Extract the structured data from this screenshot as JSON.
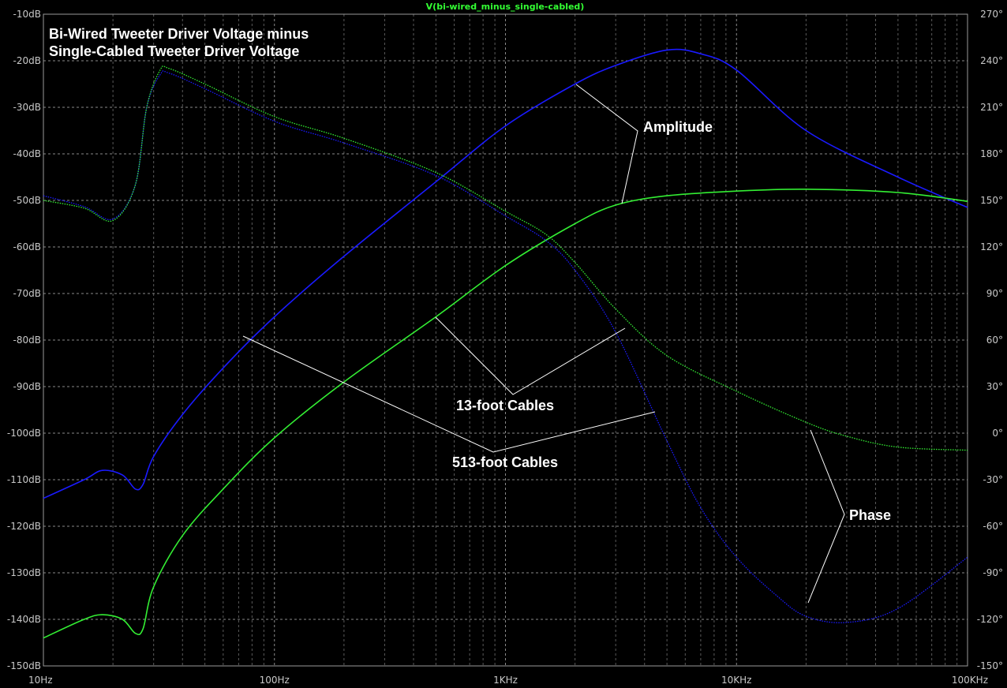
{
  "chart_data": {
    "type": "line",
    "header": "V(bi-wired_minus_single-cabled)",
    "title_lines": [
      "Bi-Wired Tweeter Driver Voltage minus",
      "Single-Cabled Tweeter Driver Voltage"
    ],
    "x_scale": "log",
    "xlim": [
      10,
      100000
    ],
    "x_tick_values": [
      10,
      100,
      1000,
      10000,
      100000
    ],
    "x_tick_labels": [
      "10Hz",
      "100Hz",
      "1KHz",
      "10KHz",
      "100KHz"
    ],
    "y_left_lim": [
      -150,
      -10
    ],
    "y_left_tick_values": [
      -10,
      -20,
      -30,
      -40,
      -50,
      -60,
      -70,
      -80,
      -90,
      -100,
      -110,
      -120,
      -130,
      -140,
      -150
    ],
    "y_left_tick_labels": [
      "-10dB",
      "-20dB",
      "-30dB",
      "-40dB",
      "-50dB",
      "-60dB",
      "-70dB",
      "-80dB",
      "-90dB",
      "-100dB",
      "-110dB",
      "-120dB",
      "-130dB",
      "-140dB",
      "-150dB"
    ],
    "y_right_lim": [
      -150,
      270
    ],
    "y_right_tick_values": [
      270,
      240,
      210,
      180,
      150,
      120,
      90,
      60,
      30,
      0,
      -30,
      -60,
      -90,
      -120,
      -150
    ],
    "y_right_tick_labels": [
      "270°",
      "240°",
      "210°",
      "180°",
      "150°",
      "120°",
      "90°",
      "60°",
      "30°",
      "0°",
      "-30°",
      "-60°",
      "-90°",
      "-120°",
      "-150°"
    ],
    "grid": true,
    "series": [
      {
        "color": "#1a1aff",
        "style": "solid",
        "axis": "left",
        "x": [
          10,
          15,
          18,
          22,
          25,
          27,
          30,
          40,
          60,
          100,
          200,
          500,
          1000,
          2000,
          3000,
          5000,
          7000,
          10000,
          20000,
          50000,
          100000
        ],
        "y": [
          -114,
          -110,
          -108,
          -109,
          -112,
          -111,
          -105,
          -96,
          -86,
          -75,
          -62,
          -46,
          -34,
          -25,
          -21,
          -17.7,
          -18.5,
          -22,
          -35,
          -45,
          -51.5
        ]
      },
      {
        "color": "#33ee33",
        "style": "solid",
        "axis": "left",
        "x": [
          10,
          15,
          18,
          22,
          25,
          27,
          30,
          40,
          60,
          100,
          200,
          500,
          1000,
          2000,
          3000,
          5000,
          10000,
          20000,
          50000,
          100000
        ],
        "y": [
          -144,
          -140,
          -139,
          -140,
          -143,
          -142,
          -133,
          -122,
          -112,
          -101,
          -89,
          -75,
          -64,
          -55,
          -51,
          -49,
          -48,
          -47.6,
          -48.3,
          -50.2
        ]
      },
      {
        "color": "#1a1aff",
        "style": "dotted",
        "axis": "right",
        "x": [
          10,
          15,
          20,
          25,
          28,
          32,
          35,
          50,
          100,
          200,
          500,
          1000,
          1500,
          2000,
          3000,
          5000,
          7000,
          10000,
          15000,
          20000,
          30000,
          50000,
          100000
        ],
        "y": [
          153,
          146,
          138,
          160,
          210,
          231,
          232,
          222,
          201,
          187,
          166,
          140,
          124,
          105,
          65,
          -5,
          -48,
          -80,
          -105,
          -118,
          -122,
          -113,
          -80
        ]
      },
      {
        "color": "#33ee33",
        "style": "dotted",
        "axis": "right",
        "x": [
          10,
          15,
          20,
          25,
          28,
          32,
          35,
          50,
          100,
          200,
          500,
          1000,
          1500,
          2000,
          3000,
          5000,
          10000,
          20000,
          30000,
          50000,
          100000
        ],
        "y": [
          150,
          145,
          137,
          160,
          210,
          234,
          235,
          225,
          204,
          190,
          168,
          143,
          128,
          110,
          80,
          50,
          27,
          7,
          -2,
          -9,
          -11
        ]
      }
    ],
    "annotations": [
      "Amplitude",
      "13-foot Cables",
      "513-foot Cables",
      "Phase"
    ]
  }
}
